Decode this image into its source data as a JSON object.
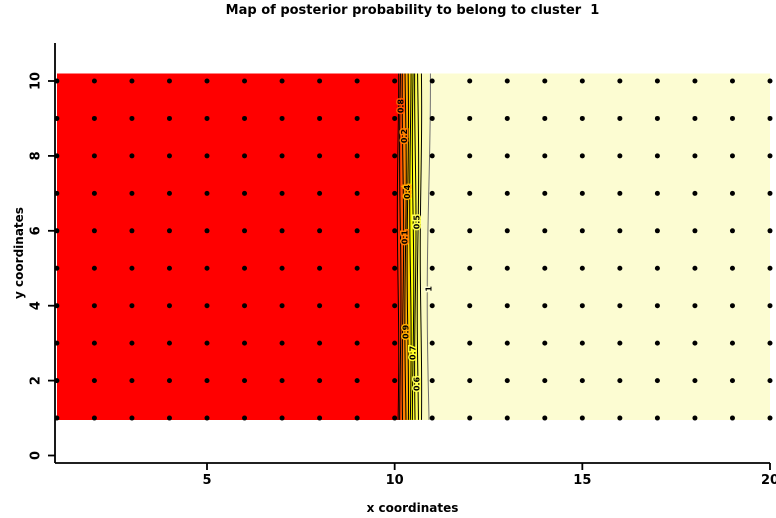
{
  "title": "Map of posterior probability to belong to cluster  1",
  "axes": {
    "xlabel": "x coordinates",
    "ylabel": "y coordinates",
    "x_ticks": [
      5,
      10,
      15,
      20
    ],
    "y_ticks": [
      0,
      2,
      4,
      6,
      8,
      10
    ]
  },
  "chart_data": {
    "type": "heatmap",
    "title": "Map of posterior probability to belong to cluster  1",
    "xlabel": "x coordinates",
    "ylabel": "y coordinates",
    "xlim": [
      1,
      20
    ],
    "ylim": [
      0,
      11
    ],
    "x_tick_labels": [
      5,
      10,
      15,
      20
    ],
    "y_tick_labels": [
      0,
      2,
      4,
      6,
      8,
      10
    ],
    "description": "Posterior probability of cluster 1: approx 0 (red) for x <= 10, steep transition between x=10 and x=11 shown by packed contour lines, approx 1 (pale yellow) for x >= 11.",
    "image_y_extent": [
      0.95,
      10.2
    ],
    "grid_points": {
      "x_min": 1,
      "x_max": 20,
      "x_step": 1,
      "y_min": 1,
      "y_max": 10,
      "y_step": 1,
      "marker": "filled-black-dot",
      "radius_px": 2.5
    },
    "bands": [
      {
        "from": 1.0,
        "to": 10.09,
        "color": "#FF0000"
      },
      {
        "from": 10.09,
        "to": 10.15,
        "color": "#FF2B00"
      },
      {
        "from": 10.15,
        "to": 10.22,
        "color": "#FF5500"
      },
      {
        "from": 10.22,
        "to": 10.29,
        "color": "#FF8000"
      },
      {
        "from": 10.29,
        "to": 10.35,
        "color": "#FFAA00"
      },
      {
        "from": 10.35,
        "to": 10.42,
        "color": "#FFD500"
      },
      {
        "from": 10.42,
        "to": 10.49,
        "color": "#FFFF00"
      },
      {
        "from": 10.49,
        "to": 10.55,
        "color": "#FFFF2A"
      },
      {
        "from": 10.55,
        "to": 10.62,
        "color": "#FFFF55"
      },
      {
        "from": 10.62,
        "to": 10.7,
        "color": "#FFFF80"
      },
      {
        "from": 10.7,
        "to": 10.91,
        "color": "#FAFAC0"
      },
      {
        "from": 10.91,
        "to": 20.0,
        "color": "#FCFCD2"
      }
    ],
    "contour_levels": [
      0.1,
      0.2,
      0.3,
      0.4,
      0.5,
      0.6,
      0.7,
      0.8,
      0.9,
      1
    ],
    "contour_lines": [
      {
        "level": 0.1,
        "x": 10.09,
        "color": "#000000"
      },
      {
        "level": 0.2,
        "x": 10.15,
        "color": "#000000"
      },
      {
        "level": 0.3,
        "x": 10.22,
        "color": "#000000"
      },
      {
        "level": 0.4,
        "x": 10.29,
        "color": "#000000"
      },
      {
        "level": 0.5,
        "x": 10.35,
        "color": "#000000"
      },
      {
        "level": 0.6,
        "x": 10.42,
        "color": "#000000"
      },
      {
        "level": 0.7,
        "x": 10.49,
        "color": "#000000"
      },
      {
        "level": 0.8,
        "x": 10.55,
        "color": "#000000"
      },
      {
        "level": 0.9,
        "x": 10.62,
        "color": "#000000"
      },
      {
        "x": 10.7,
        "color": "#000000"
      },
      {
        "level": 1,
        "x": 10.91,
        "color": "#6E6E6E"
      }
    ],
    "contour_labels": [
      {
        "text": "0.8",
        "x": 10.17,
        "y": 9.33,
        "halo": "#FF5500"
      },
      {
        "text": "0.2",
        "x": 10.26,
        "y": 8.53,
        "halo": "#FF8000"
      },
      {
        "text": "0.4",
        "x": 10.34,
        "y": 7.04,
        "halo": "#FFAA00"
      },
      {
        "text": "0.5",
        "x": 10.59,
        "y": 6.23,
        "halo": "#FFFF55"
      },
      {
        "text": "0.1",
        "x": 10.27,
        "y": 5.83,
        "halo": "#FF8000"
      },
      {
        "text": "1",
        "x": 10.91,
        "y": 4.45,
        "halo": "#FCFCD2"
      },
      {
        "text": "0.9",
        "x": 10.3,
        "y": 3.3,
        "halo": "#FFAA00"
      },
      {
        "text": "0.7",
        "x": 10.49,
        "y": 2.74,
        "halo": "#FFFF2A"
      },
      {
        "text": "0.6",
        "x": 10.59,
        "y": 1.91,
        "halo": "#FFFF55"
      }
    ],
    "colors": {
      "low": "#FF0000",
      "high": "#FCFCD2",
      "contour_line": "#000000",
      "level1_line": "#6E6E6E",
      "dot": "#000000",
      "axis": "#000000"
    },
    "legend": "none",
    "grid": "off"
  }
}
